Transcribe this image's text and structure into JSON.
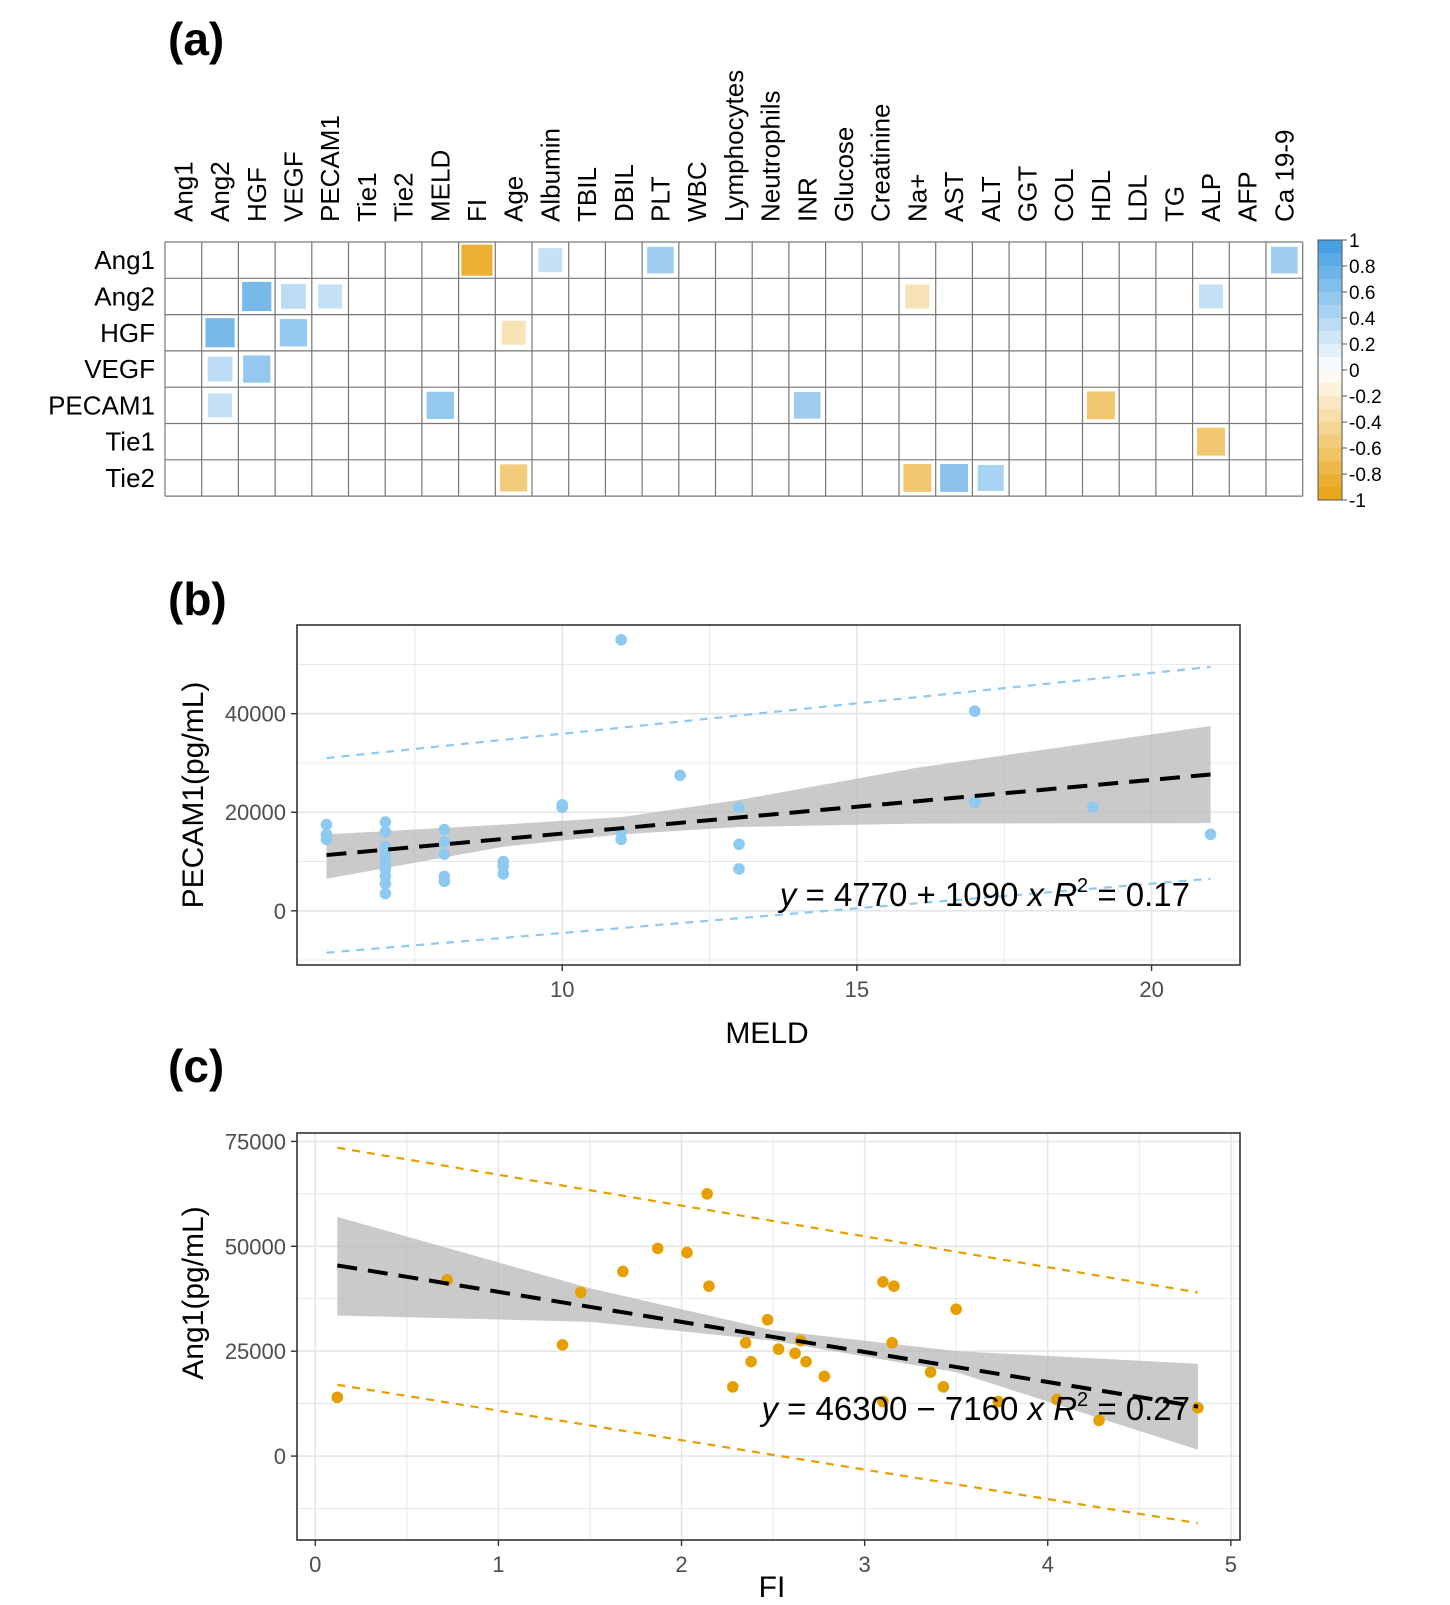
{
  "colors": {
    "positive": "#3d9be0",
    "negative": "#e8a20f",
    "blue_point": "#8ecaef",
    "orange_point": "#e69f00",
    "ci_band": "#b8b8b8",
    "grid": "#e6e6e6",
    "cell_border": "#777777"
  },
  "chart_data": [
    {
      "panel": "(a)",
      "type": "heatmap",
      "title": "",
      "columns": [
        "Ang1",
        "Ang2",
        "HGF",
        "VEGF",
        "PECAM1",
        "Tie1",
        "Tie2",
        "MELD",
        "FI",
        "Age",
        "Albumin",
        "TBIL",
        "DBIL",
        "PLT",
        "WBC",
        "Lymphocytes",
        "Neutrophils",
        "INR",
        "Glucose",
        "Creatinine",
        "Na+",
        "AST",
        "ALT",
        "GGT",
        "COL",
        "HDL",
        "LDL",
        "TG",
        "ALP",
        "AFP",
        "Ca 19-9"
      ],
      "rows": [
        "Ang1",
        "Ang2",
        "HGF",
        "VEGF",
        "PECAM1",
        "Tie1",
        "Tie2"
      ],
      "cells": [
        {
          "row": "Ang1",
          "col": "FI",
          "value": -0.85
        },
        {
          "row": "Ang1",
          "col": "Albumin",
          "value": 0.3
        },
        {
          "row": "Ang1",
          "col": "PLT",
          "value": 0.5
        },
        {
          "row": "Ang1",
          "col": "Ca 19-9",
          "value": 0.5
        },
        {
          "row": "Ang2",
          "col": "HGF",
          "value": 0.7
        },
        {
          "row": "Ang2",
          "col": "VEGF",
          "value": 0.35
        },
        {
          "row": "Ang2",
          "col": "PECAM1",
          "value": 0.3
        },
        {
          "row": "Ang2",
          "col": "Na+",
          "value": -0.3
        },
        {
          "row": "Ang2",
          "col": "ALP",
          "value": 0.3
        },
        {
          "row": "HGF",
          "col": "Ang2",
          "value": 0.7
        },
        {
          "row": "HGF",
          "col": "VEGF",
          "value": 0.55
        },
        {
          "row": "HGF",
          "col": "Age",
          "value": -0.3
        },
        {
          "row": "VEGF",
          "col": "Ang2",
          "value": 0.35
        },
        {
          "row": "VEGF",
          "col": "HGF",
          "value": 0.55
        },
        {
          "row": "PECAM1",
          "col": "Ang2",
          "value": 0.3
        },
        {
          "row": "PECAM1",
          "col": "MELD",
          "value": 0.55
        },
        {
          "row": "PECAM1",
          "col": "INR",
          "value": 0.5
        },
        {
          "row": "PECAM1",
          "col": "HDL",
          "value": -0.6
        },
        {
          "row": "Tie1",
          "col": "ALP",
          "value": -0.6
        },
        {
          "row": "Tie2",
          "col": "Age",
          "value": -0.55
        },
        {
          "row": "Tie2",
          "col": "Na+",
          "value": -0.6
        },
        {
          "row": "Tie2",
          "col": "AST",
          "value": 0.6
        },
        {
          "row": "Tie2",
          "col": "ALT",
          "value": 0.45
        }
      ],
      "color_scale": {
        "range": [
          -1,
          1
        ],
        "ticks": [
          "1",
          "0.8",
          "0.6",
          "0.4",
          "0.2",
          "0",
          "-0.2",
          "-0.4",
          "-0.6",
          "-0.8",
          "-1"
        ]
      }
    },
    {
      "panel": "(b)",
      "type": "scatter",
      "title": "",
      "xlabel": "MELD",
      "ylabel": "PECAM1(pg/mL)",
      "xlim": [
        5.5,
        21.5
      ],
      "ylim": [
        -11000,
        58000
      ],
      "xticks": [
        10,
        15,
        20
      ],
      "yticks": [
        0,
        20000,
        40000
      ],
      "xtick_labels": [
        "10",
        "15",
        "20"
      ],
      "ytick_labels": [
        "0",
        "20000",
        "40000"
      ],
      "points": [
        [
          6,
          17500
        ],
        [
          6,
          15500
        ],
        [
          6,
          14500
        ],
        [
          7,
          18000
        ],
        [
          7,
          16000
        ],
        [
          7,
          13000
        ],
        [
          7,
          12000
        ],
        [
          7,
          11000
        ],
        [
          7,
          9500
        ],
        [
          7,
          8500
        ],
        [
          7,
          7000
        ],
        [
          7,
          5500
        ],
        [
          7,
          3500
        ],
        [
          8,
          16500
        ],
        [
          8,
          14000
        ],
        [
          8,
          11500
        ],
        [
          8,
          7000
        ],
        [
          8,
          6000
        ],
        [
          9,
          10000
        ],
        [
          9,
          9000
        ],
        [
          9,
          7500
        ],
        [
          10,
          21500
        ],
        [
          10,
          21000
        ],
        [
          11,
          55000
        ],
        [
          11,
          16000
        ],
        [
          11,
          14500
        ],
        [
          12,
          27500
        ],
        [
          13,
          21000
        ],
        [
          13,
          13500
        ],
        [
          13,
          8500
        ],
        [
          17,
          40500
        ],
        [
          17,
          22000
        ],
        [
          19,
          21000
        ],
        [
          21,
          15500
        ]
      ],
      "fit": {
        "intercept": 4770,
        "slope": 1090,
        "x_range": [
          6,
          21
        ]
      },
      "ci_lower": [
        [
          6,
          6500
        ],
        [
          9,
          13000
        ],
        [
          11,
          15500
        ],
        [
          13,
          17000
        ],
        [
          16,
          17700
        ],
        [
          21,
          17800
        ]
      ],
      "ci_upper": [
        [
          6,
          15500
        ],
        [
          9,
          17500
        ],
        [
          11,
          19000
        ],
        [
          13,
          22500
        ],
        [
          16,
          29000
        ],
        [
          21,
          37500
        ]
      ],
      "pred_lower": [
        [
          6,
          -8500
        ],
        [
          21,
          6500
        ]
      ],
      "pred_upper": [
        [
          6,
          31000
        ],
        [
          21,
          49500
        ]
      ],
      "equation": {
        "prefix": "y",
        "body": " = 4770 + 1090 ",
        "var": "x",
        "r": "R",
        "sup": "2",
        "tail": " = 0.17"
      }
    },
    {
      "panel": "(c)",
      "type": "scatter",
      "title": "",
      "xlabel": "FI",
      "ylabel": "Ang1(pg/mL)",
      "xlim": [
        -0.1,
        5.05
      ],
      "ylim": [
        -20000,
        77000
      ],
      "xticks": [
        0,
        1,
        2,
        3,
        4,
        5
      ],
      "yticks": [
        0,
        25000,
        50000,
        75000
      ],
      "xtick_labels": [
        "0",
        "1",
        "2",
        "3",
        "4",
        "5"
      ],
      "ytick_labels": [
        "0",
        "25000",
        "50000",
        "75000"
      ],
      "points": [
        [
          0.12,
          14000
        ],
        [
          0.72,
          42000
        ],
        [
          1.35,
          26500
        ],
        [
          1.45,
          39000
        ],
        [
          1.68,
          44000
        ],
        [
          1.87,
          49500
        ],
        [
          2.03,
          48500
        ],
        [
          2.14,
          62500
        ],
        [
          2.15,
          40500
        ],
        [
          2.28,
          16500
        ],
        [
          2.35,
          27000
        ],
        [
          2.38,
          22500
        ],
        [
          2.47,
          32500
        ],
        [
          2.53,
          25500
        ],
        [
          2.62,
          24500
        ],
        [
          2.65,
          27500
        ],
        [
          2.68,
          22500
        ],
        [
          2.78,
          19000
        ],
        [
          3.1,
          41500
        ],
        [
          3.1,
          13000
        ],
        [
          3.15,
          27000
        ],
        [
          3.16,
          40500
        ],
        [
          3.36,
          20000
        ],
        [
          3.43,
          16500
        ],
        [
          3.5,
          35000
        ],
        [
          3.73,
          13000
        ],
        [
          4.05,
          13500
        ],
        [
          4.28,
          8500
        ],
        [
          4.82,
          11500
        ]
      ],
      "fit": {
        "intercept": 46300,
        "slope": -7160,
        "x_range": [
          0.12,
          4.82
        ]
      },
      "ci_lower": [
        [
          0.12,
          33500
        ],
        [
          1.5,
          32000
        ],
        [
          2.5,
          27500
        ],
        [
          3.5,
          20000
        ],
        [
          4.82,
          1500
        ]
      ],
      "ci_upper": [
        [
          0.12,
          57000
        ],
        [
          1.5,
          40000
        ],
        [
          2.5,
          30000
        ],
        [
          3.5,
          25000
        ],
        [
          4.82,
          22000
        ]
      ],
      "pred_lower": [
        [
          0.12,
          17000
        ],
        [
          4.82,
          -16000
        ]
      ],
      "pred_upper": [
        [
          0.12,
          73500
        ],
        [
          4.82,
          39000
        ]
      ],
      "equation": {
        "prefix": "y",
        "body": " = 46300 − 7160 ",
        "var": "x",
        "r": "R",
        "sup": "2",
        "tail": " = 0.27"
      }
    }
  ]
}
